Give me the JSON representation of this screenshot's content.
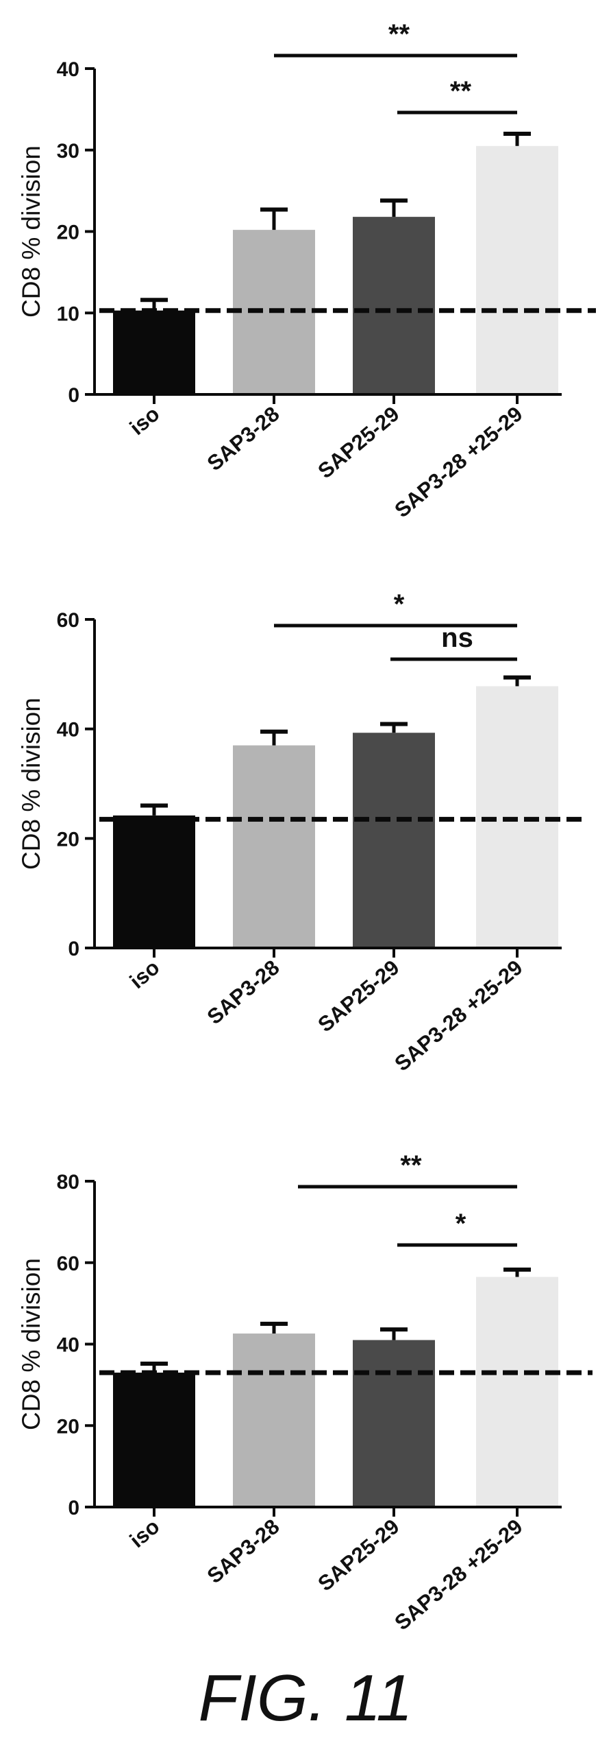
{
  "figure_label": "FIG. 11",
  "chart_data": [
    {
      "type": "bar",
      "categories": [
        "iso",
        "SAP3-28",
        "SAP25-29",
        "SAP3-28 +25-29"
      ],
      "values": [
        10.3,
        20.2,
        21.8,
        30.5
      ],
      "errors": [
        1.3,
        2.5,
        2.0,
        1.5
      ],
      "colors": [
        "#0a0a0a",
        "#b4b4b4",
        "#4a4a4a",
        "#e9e9e9"
      ],
      "ylabel": "CD8 % division",
      "ylim": [
        0,
        40
      ],
      "yticks": [
        0,
        10,
        20,
        30,
        40
      ],
      "baseline": 10.3,
      "significance": [
        {
          "from": 1,
          "to": 3,
          "label": "**"
        },
        {
          "from": 2,
          "to": 3,
          "label": "**"
        }
      ]
    },
    {
      "type": "bar",
      "categories": [
        "iso",
        "SAP3-28",
        "SAP25-29",
        "SAP3-28 +25-29"
      ],
      "values": [
        24.2,
        37.0,
        39.3,
        47.8
      ],
      "errors": [
        1.8,
        2.5,
        1.6,
        1.6
      ],
      "colors": [
        "#0a0a0a",
        "#b4b4b4",
        "#4a4a4a",
        "#e9e9e9"
      ],
      "ylabel": "CD8 % division",
      "ylim": [
        0,
        60
      ],
      "yticks": [
        0,
        20,
        40,
        60
      ],
      "baseline": 23.5,
      "significance": [
        {
          "from": 1,
          "to": 3,
          "label": "*"
        },
        {
          "from": 2,
          "to": 3,
          "label": "ns"
        }
      ]
    },
    {
      "type": "bar",
      "categories": [
        "iso",
        "SAP3-28",
        "SAP25-29",
        "SAP3-28 +25-29"
      ],
      "values": [
        33.0,
        42.6,
        41.0,
        56.5
      ],
      "errors": [
        2.2,
        2.4,
        2.6,
        1.8
      ],
      "colors": [
        "#0a0a0a",
        "#b4b4b4",
        "#4a4a4a",
        "#e9e9e9"
      ],
      "ylabel": "CD8 % division",
      "ylim": [
        0,
        80
      ],
      "yticks": [
        0,
        20,
        40,
        60,
        80
      ],
      "baseline": 33.0,
      "significance": [
        {
          "from": 1,
          "to": 3,
          "label": "**"
        },
        {
          "from": 2,
          "to": 3,
          "label": "*"
        }
      ]
    }
  ]
}
